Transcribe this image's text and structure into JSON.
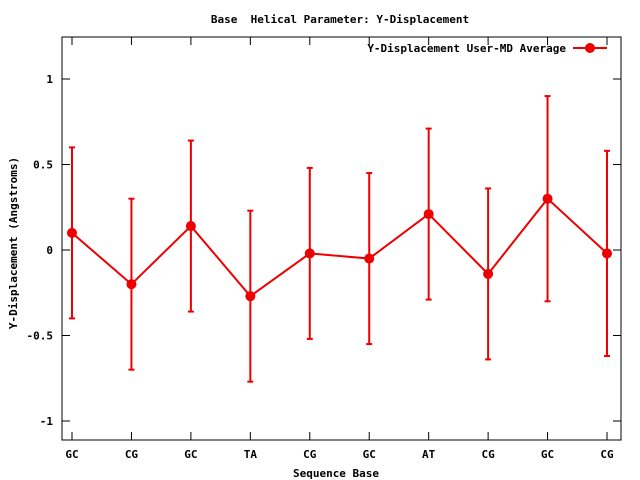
{
  "chart_data": {
    "type": "line",
    "title": "Base  Helical Parameter: Y-Displacement",
    "xlabel": "Sequence Base",
    "ylabel": "Y-Displacement (Angstroms)",
    "categories": [
      "GC",
      "CG",
      "GC",
      "TA",
      "CG",
      "GC",
      "AT",
      "CG",
      "GC",
      "CG"
    ],
    "ylim": [
      -1.1,
      1.25
    ],
    "yticks": [
      -1,
      -0.5,
      0,
      0.5,
      1
    ],
    "ytick_labels": [
      "-1",
      "-0.5",
      "0",
      "0.5",
      "1"
    ],
    "grid": false,
    "legend_position": "top-right",
    "series": [
      {
        "name": "Y-Displacement User-MD Average",
        "color": "#ee0000",
        "values": [
          0.1,
          -0.2,
          0.14,
          -0.27,
          -0.02,
          -0.05,
          0.21,
          -0.14,
          0.3,
          -0.02
        ],
        "err_low": [
          -0.4,
          -0.7,
          -0.36,
          -0.77,
          -0.52,
          -0.55,
          -0.29,
          -0.64,
          -0.3,
          -0.62
        ],
        "err_high": [
          0.6,
          0.3,
          0.64,
          0.23,
          0.48,
          0.45,
          0.71,
          0.36,
          0.9,
          0.58
        ]
      }
    ]
  }
}
